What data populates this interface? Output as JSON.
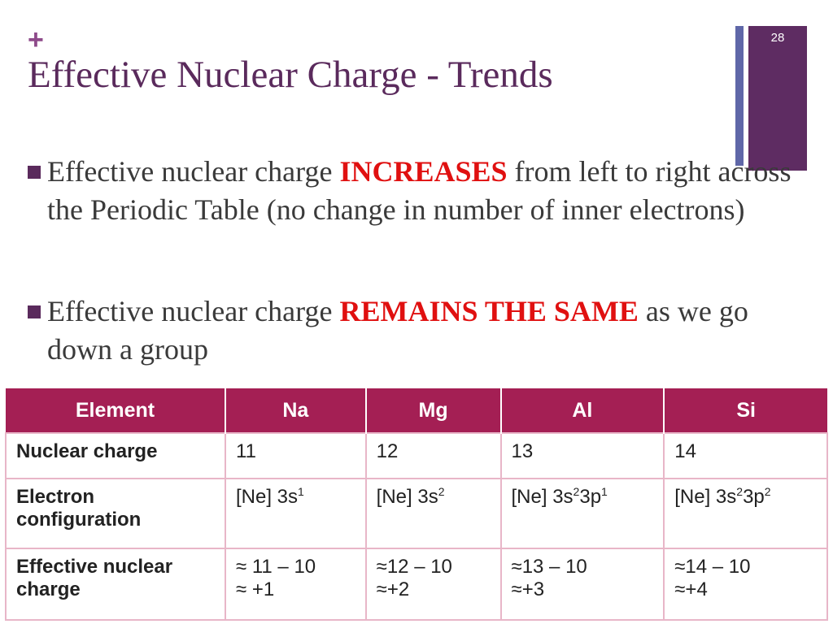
{
  "slide": {
    "plus": "+",
    "title": "Effective Nuclear Charge - Trends",
    "page_number": "28"
  },
  "bullets": [
    {
      "before": "Effective nuclear charge ",
      "emphasis": "INCREASES",
      "after": " from left to right across the Periodic Table (no change in number of inner electrons)"
    },
    {
      "before": "Effective nuclear charge ",
      "emphasis": "REMAINS THE SAME",
      "after": " as we go down a group"
    }
  ],
  "table": {
    "headers": [
      "Element",
      "Na",
      "Mg",
      "Al",
      "Si"
    ],
    "rows": [
      {
        "label": "Nuclear charge",
        "cells": [
          "11",
          "12",
          "13",
          "14"
        ]
      },
      {
        "label": "Electron configuration",
        "cells": [
          {
            "base": "[Ne] 3s",
            "sup1": "1",
            "mid": "",
            "sup2": ""
          },
          {
            "base": "[Ne] 3s",
            "sup1": "2",
            "mid": "",
            "sup2": ""
          },
          {
            "base": "[Ne] 3s",
            "sup1": "2",
            "mid": "3p",
            "sup2": "1"
          },
          {
            "base": "[Ne] 3s",
            "sup1": "2",
            "mid": "3p",
            "sup2": "2"
          }
        ]
      },
      {
        "label": "Effective nuclear charge",
        "cells": [
          {
            "line1": "≈ 11 – 10",
            "line2": "≈ +1"
          },
          {
            "line1": "≈12 – 10",
            "line2": "≈+2"
          },
          {
            "line1": "≈13 – 10",
            "line2": "≈+3"
          },
          {
            "line1": "≈14 – 10",
            "line2": "≈+4"
          }
        ]
      }
    ]
  },
  "colors": {
    "title": "#5a2a5c",
    "emphasis": "#e01010",
    "table_header": "#a41f54",
    "accent_bar": "#5e2c62"
  }
}
